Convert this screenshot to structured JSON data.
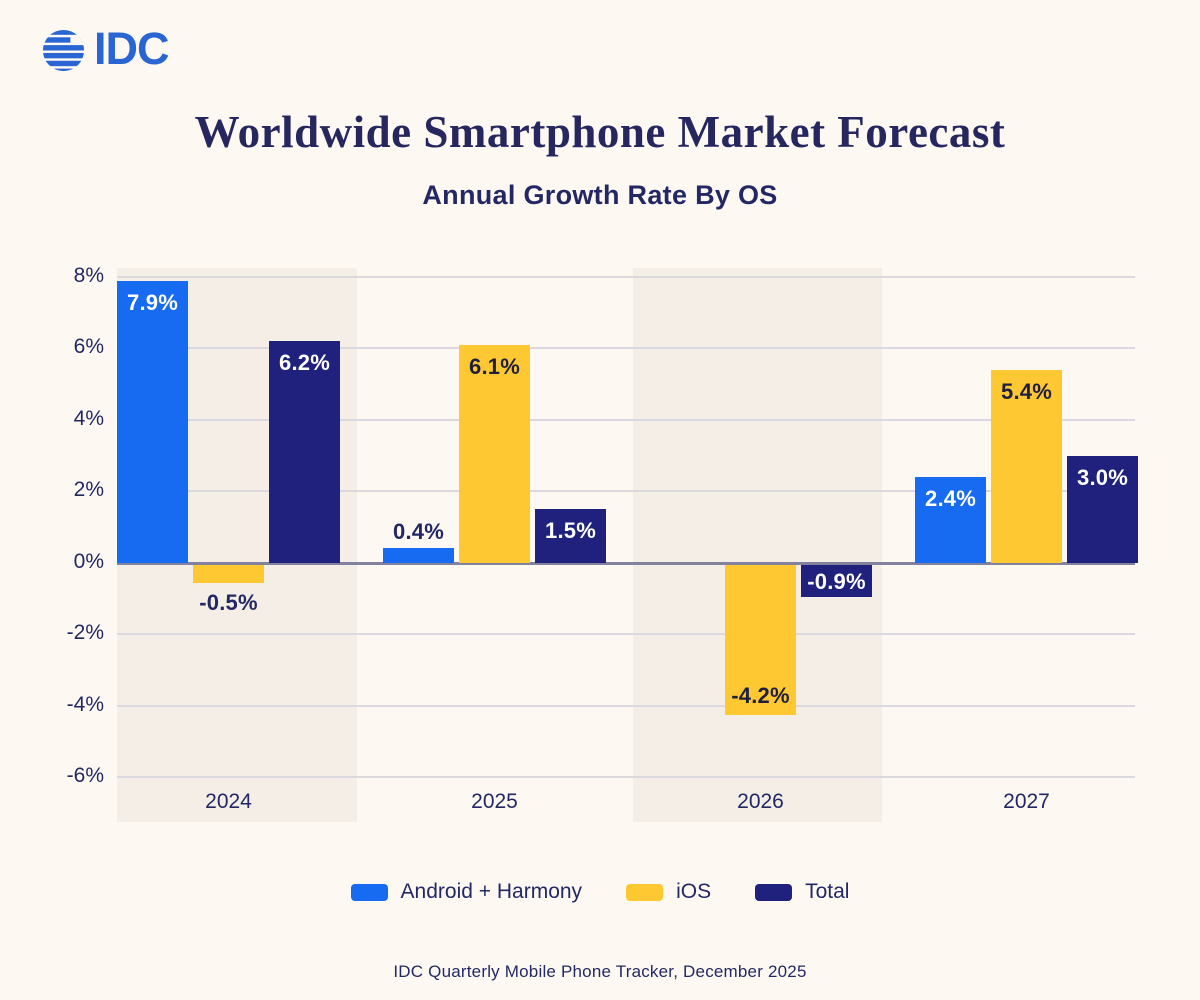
{
  "logo": {
    "text": "IDC",
    "color": "#2a65d4"
  },
  "header": {
    "title": "Worldwide Smartphone Market Forecast",
    "subtitle": "Annual Growth Rate By OS",
    "title_color": "#27275f",
    "subtitle_color": "#232864"
  },
  "footer": {
    "source": "IDC Quarterly Mobile Phone Tracker, December 2025"
  },
  "colors": {
    "background": "#fdf9f2",
    "band": "#f4eee7",
    "gridline": "#dcd8e0",
    "zero_line": "#82829e",
    "axis_text": "#232864",
    "android_blue": "#176bf0",
    "ios_yellow": "#fec832",
    "total_navy": "#1f217d",
    "label_light": "#ffffff",
    "label_dark": "#1f1f3d"
  },
  "legend": {
    "items": [
      {
        "label": "Android + Harmony",
        "color": "#176bf0"
      },
      {
        "label": "iOS",
        "color": "#fec832"
      },
      {
        "label": "Total",
        "color": "#1f217d"
      }
    ]
  },
  "chart_data": {
    "type": "bar",
    "title": "Worldwide Smartphone Market Forecast",
    "subtitle": "Annual Growth Rate By OS",
    "unit": "%",
    "categories": [
      "2024",
      "2025",
      "2026",
      "2027"
    ],
    "highlighted_categories": [
      "2024",
      "2026"
    ],
    "ylim": [
      -6,
      8
    ],
    "grid": true,
    "legend_position": "bottom",
    "y_ticks": [
      {
        "value": 8,
        "label": "8%"
      },
      {
        "value": 6,
        "label": "6%"
      },
      {
        "value": 4,
        "label": "4%"
      },
      {
        "value": 2,
        "label": "2%"
      },
      {
        "value": 0,
        "label": "0%"
      },
      {
        "value": -2,
        "label": "-2%"
      },
      {
        "value": -4,
        "label": "-4%"
      },
      {
        "value": -6,
        "label": "-6%"
      }
    ],
    "series": [
      {
        "name": "Android + Harmony",
        "color": "#176bf0",
        "values": [
          7.9,
          0.4,
          0.0,
          2.4
        ],
        "labels": [
          {
            "text": "7.9%",
            "pos": "inside-top",
            "color": "#ffffff"
          },
          {
            "text": "0.4%",
            "pos": "above",
            "color": "#232864"
          },
          {
            "text": "",
            "pos": "none",
            "color": ""
          },
          {
            "text": "2.4%",
            "pos": "inside-top",
            "color": "#ffffff"
          }
        ]
      },
      {
        "name": "iOS",
        "color": "#fec832",
        "values": [
          -0.5,
          6.1,
          -4.2,
          5.4
        ],
        "labels": [
          {
            "text": "-0.5%",
            "pos": "below",
            "color": "#232864"
          },
          {
            "text": "6.1%",
            "pos": "inside-top",
            "color": "#1f1f3d"
          },
          {
            "text": "-4.2%",
            "pos": "inside-bottom",
            "color": "#1f1f3d"
          },
          {
            "text": "5.4%",
            "pos": "inside-top",
            "color": "#1f1f3d"
          }
        ]
      },
      {
        "name": "Total",
        "color": "#1f217d",
        "values": [
          6.2,
          1.5,
          -0.9,
          3.0
        ],
        "labels": [
          {
            "text": "6.2%",
            "pos": "inside-top",
            "color": "#ffffff"
          },
          {
            "text": "1.5%",
            "pos": "inside-top",
            "color": "#ffffff"
          },
          {
            "text": "-0.9%",
            "pos": "inside-center",
            "color": "#ffffff"
          },
          {
            "text": "3.0%",
            "pos": "inside-top",
            "color": "#ffffff"
          }
        ]
      }
    ]
  }
}
